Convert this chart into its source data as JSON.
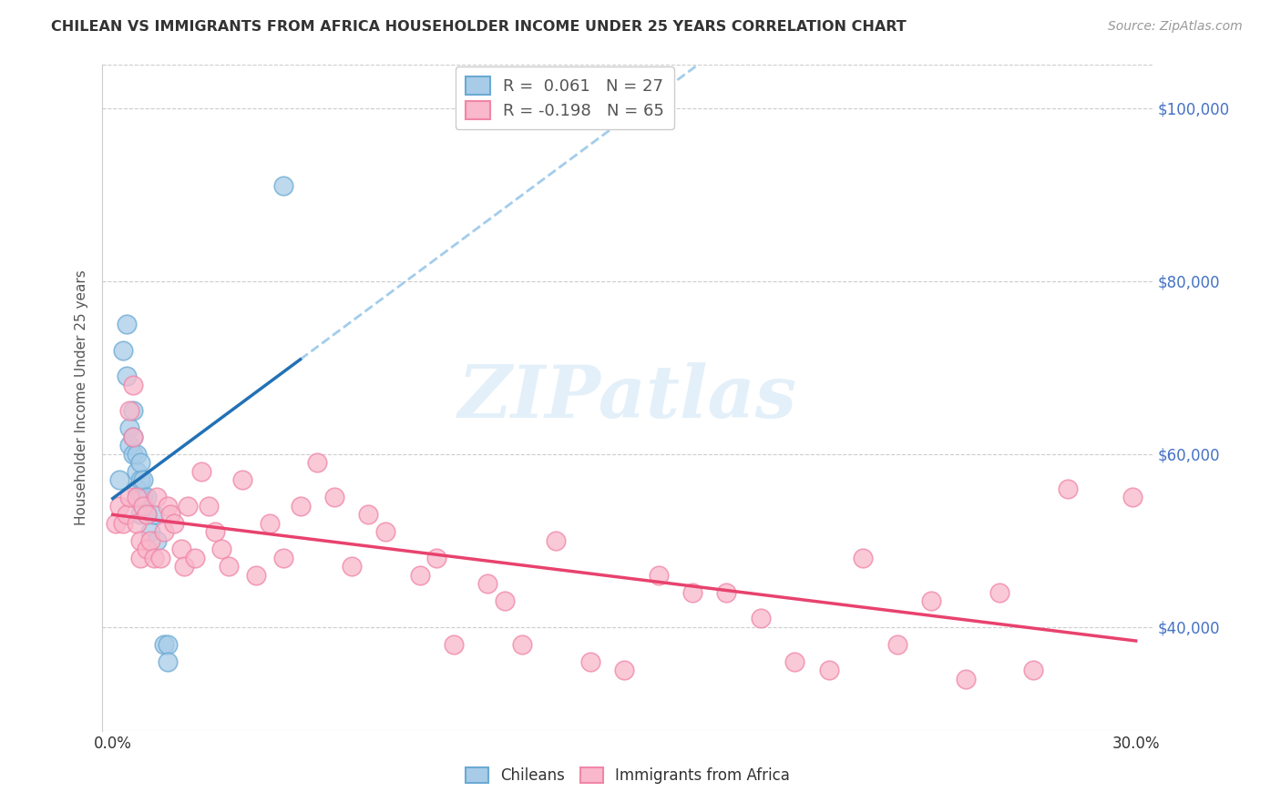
{
  "title": "CHILEAN VS IMMIGRANTS FROM AFRICA HOUSEHOLDER INCOME UNDER 25 YEARS CORRELATION CHART",
  "source": "Source: ZipAtlas.com",
  "ylabel": "Householder Income Under 25 years",
  "xlim": [
    0.0,
    0.3
  ],
  "ylim": [
    28000,
    105000
  ],
  "yticks": [
    40000,
    60000,
    80000,
    100000
  ],
  "ytick_labels": [
    "$40,000",
    "$60,000",
    "$80,000",
    "$100,000"
  ],
  "watermark": "ZIPatlas",
  "blue_color": "#a8cce8",
  "blue_edge_color": "#6aaad4",
  "blue_line_color": "#2271b5",
  "blue_dashed_color": "#93c4e8",
  "pink_color": "#f9b8cb",
  "pink_edge_color": "#f086a8",
  "pink_line_color": "#e8426e",
  "right_axis_color": "#4472c4",
  "grid_color": "#cccccc",
  "blue_x": [
    0.002,
    0.003,
    0.004,
    0.004,
    0.005,
    0.005,
    0.006,
    0.006,
    0.006,
    0.007,
    0.007,
    0.007,
    0.008,
    0.008,
    0.008,
    0.008,
    0.009,
    0.009,
    0.01,
    0.01,
    0.011,
    0.012,
    0.013,
    0.015,
    0.016,
    0.016,
    0.05
  ],
  "blue_y": [
    57000,
    72000,
    75000,
    69000,
    63000,
    61000,
    60000,
    62000,
    65000,
    58000,
    60000,
    56000,
    57000,
    55000,
    53000,
    59000,
    55000,
    57000,
    53000,
    55000,
    51000,
    53000,
    50000,
    38000,
    38000,
    36000,
    91000
  ],
  "pink_x": [
    0.001,
    0.002,
    0.003,
    0.004,
    0.005,
    0.005,
    0.006,
    0.006,
    0.007,
    0.007,
    0.008,
    0.008,
    0.009,
    0.01,
    0.01,
    0.011,
    0.012,
    0.013,
    0.014,
    0.015,
    0.016,
    0.017,
    0.018,
    0.02,
    0.021,
    0.022,
    0.024,
    0.026,
    0.028,
    0.03,
    0.032,
    0.034,
    0.038,
    0.042,
    0.046,
    0.05,
    0.055,
    0.06,
    0.065,
    0.07,
    0.075,
    0.08,
    0.09,
    0.095,
    0.1,
    0.11,
    0.115,
    0.12,
    0.13,
    0.14,
    0.15,
    0.16,
    0.17,
    0.18,
    0.19,
    0.2,
    0.21,
    0.22,
    0.23,
    0.24,
    0.25,
    0.26,
    0.27,
    0.28,
    0.299
  ],
  "pink_y": [
    52000,
    54000,
    52000,
    53000,
    65000,
    55000,
    68000,
    62000,
    55000,
    52000,
    50000,
    48000,
    54000,
    53000,
    49000,
    50000,
    48000,
    55000,
    48000,
    51000,
    54000,
    53000,
    52000,
    49000,
    47000,
    54000,
    48000,
    58000,
    54000,
    51000,
    49000,
    47000,
    57000,
    46000,
    52000,
    48000,
    54000,
    59000,
    55000,
    47000,
    53000,
    51000,
    46000,
    48000,
    38000,
    45000,
    43000,
    38000,
    50000,
    36000,
    35000,
    46000,
    44000,
    44000,
    41000,
    36000,
    35000,
    48000,
    38000,
    43000,
    34000,
    44000,
    35000,
    56000,
    55000
  ]
}
